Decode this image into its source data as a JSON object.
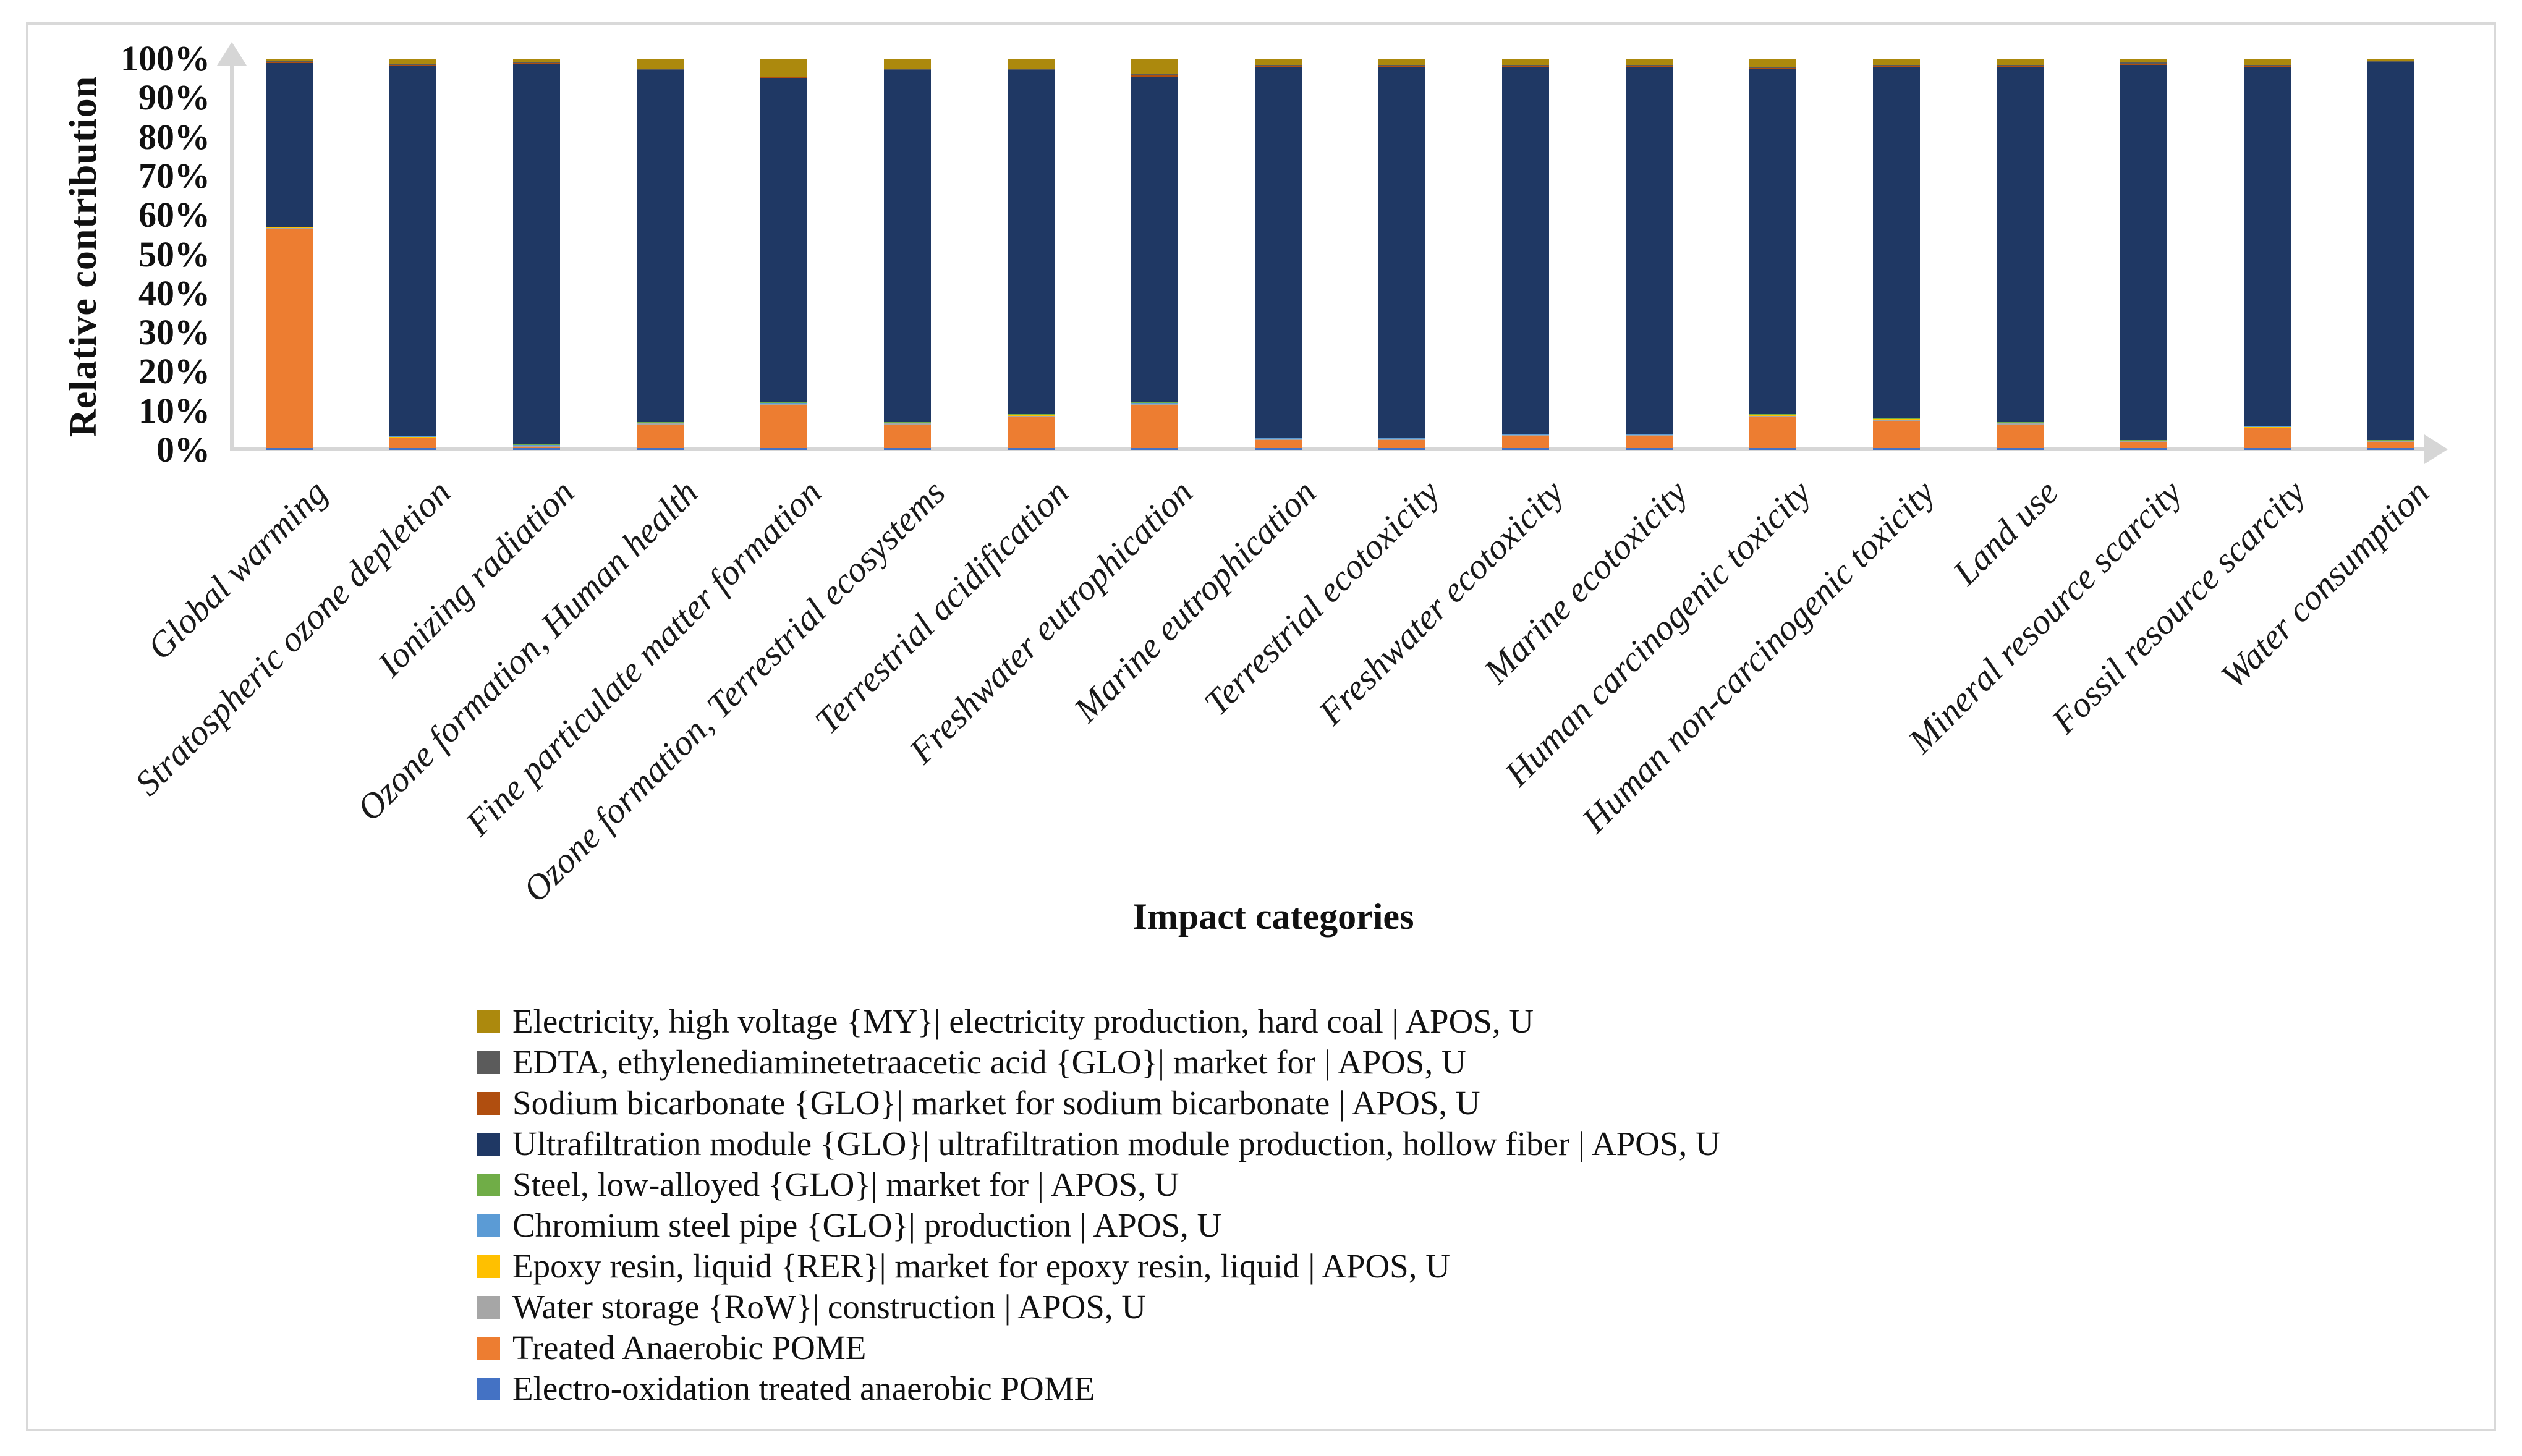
{
  "figure": {
    "y_axis_title": "Relative contribution",
    "x_axis_title": "Impact categories",
    "y_ticks": [
      "100%",
      "90%",
      "80%",
      "70%",
      "60%",
      "50%",
      "40%",
      "30%",
      "20%",
      "10%",
      "0%"
    ],
    "frame_color": "#d9d9d9",
    "axis_arrow_color": "#d6d6d6"
  },
  "chart_data": {
    "type": "bar",
    "stacked": true,
    "percent_stacked": true,
    "title": "",
    "xlabel": "Impact categories",
    "ylabel": "Relative contribution",
    "ylim": [
      0,
      100
    ],
    "grid": false,
    "legend_position": "bottom-left",
    "categories": [
      "Global warming",
      "Stratospheric ozone depletion",
      "Ionizing radiation",
      "Ozone formation, Human health",
      "Fine particulate matter formation",
      "Ozone formation, Terrestrial ecosystems",
      "Terrestrial acidification",
      "Freshwater eutrophication",
      "Marine eutrophication",
      "Terrestrial ecotoxicity",
      "Freshwater ecotoxicity",
      "Marine ecotoxicity",
      "Human carcinogenic toxicity",
      "Human non-carcinogenic toxicity",
      "Land use",
      "Mineral resource scarcity",
      "Fossil resource scarcity",
      "Water consumption"
    ],
    "series": [
      {
        "name": "Electricity, high voltage {MY}| electricity production, hard coal | APOS, U",
        "color": "#AC890D",
        "values": [
          0.6,
          1.2,
          0.8,
          2.5,
          4.5,
          2.5,
          2.5,
          4.0,
          1.5,
          1.5,
          1.5,
          1.5,
          2.0,
          1.5,
          1.5,
          1.0,
          1.5,
          0.5
        ]
      },
      {
        "name": "EDTA, ethylenediaminetetraacetic acid {GLO}| market for | APOS, U",
        "color": "#5B5B5B",
        "values": [
          0.3,
          0.3,
          0.3,
          0.3,
          0.3,
          0.3,
          0.3,
          0.3,
          0.3,
          0.3,
          0.3,
          0.3,
          0.3,
          0.3,
          0.3,
          0.3,
          0.3,
          0.3
        ]
      },
      {
        "name": "Sodium bicarbonate {GLO}| market for sodium bicarbonate | APOS, U",
        "color": "#B04E0F",
        "values": [
          0.2,
          0.2,
          0.2,
          0.2,
          0.2,
          0.2,
          0.2,
          0.2,
          0.2,
          0.2,
          0.2,
          0.2,
          0.2,
          0.2,
          0.2,
          0.2,
          0.2,
          0.2
        ]
      },
      {
        "name": "Ultrafiltration module {GLO}| ultrafiltration module production, hollow fiber | APOS, U",
        "color": "#1F3864",
        "values": [
          41.8,
          94.7,
          97.3,
          89.9,
          82.9,
          89.9,
          87.9,
          83.4,
          94.9,
          94.9,
          93.9,
          93.9,
          88.4,
          89.9,
          90.9,
          95.9,
          91.9,
          96.4
        ]
      },
      {
        "name": "Steel, low-alloyed {GLO}| market for | APOS, U",
        "color": "#70AD47",
        "values": [
          0.1,
          0.1,
          0.1,
          0.1,
          0.1,
          0.1,
          0.1,
          0.1,
          0.1,
          0.1,
          0.1,
          0.1,
          0.1,
          0.1,
          0.1,
          0.1,
          0.1,
          0.1
        ]
      },
      {
        "name": "Chromium steel pipe {GLO}| production | APOS, U",
        "color": "#5B9BD5",
        "values": [
          0.1,
          0.1,
          0.1,
          0.1,
          0.1,
          0.1,
          0.1,
          0.1,
          0.1,
          0.1,
          0.1,
          0.1,
          0.1,
          0.1,
          0.1,
          0.1,
          0.1,
          0.1
        ]
      },
      {
        "name": "Epoxy resin, liquid {RER}| market for epoxy resin, liquid | APOS, U",
        "color": "#FFC000",
        "values": [
          0.1,
          0.1,
          0.1,
          0.1,
          0.1,
          0.1,
          0.1,
          0.1,
          0.1,
          0.1,
          0.1,
          0.1,
          0.1,
          0.1,
          0.1,
          0.1,
          0.1,
          0.1
        ]
      },
      {
        "name": "Water storage {RoW}| construction | APOS, U",
        "color": "#A6A6A6",
        "values": [
          0.3,
          0.3,
          0.3,
          0.3,
          0.3,
          0.3,
          0.3,
          0.3,
          0.3,
          0.3,
          0.3,
          0.3,
          0.3,
          0.3,
          0.3,
          0.3,
          0.3,
          0.3
        ]
      },
      {
        "name": "Treated Anaerobic POME",
        "color": "#ED7D31",
        "values": [
          56.0,
          2.5,
          0.3,
          6.0,
          11.0,
          6.0,
          8.0,
          11.0,
          2.0,
          2.0,
          3.0,
          3.0,
          8.0,
          7.0,
          6.0,
          1.5,
          5.0,
          1.5
        ]
      },
      {
        "name": "Electro-oxidation treated anaerobic POME",
        "color": "#4472C4",
        "values": [
          0.5,
          0.5,
          0.5,
          0.5,
          0.5,
          0.5,
          0.5,
          0.5,
          0.5,
          0.5,
          0.5,
          0.5,
          0.5,
          0.5,
          0.5,
          0.5,
          0.5,
          0.5
        ]
      }
    ],
    "stack_order_bottom_to_top": [
      9,
      8,
      7,
      6,
      5,
      4,
      3,
      2,
      1,
      0
    ]
  }
}
